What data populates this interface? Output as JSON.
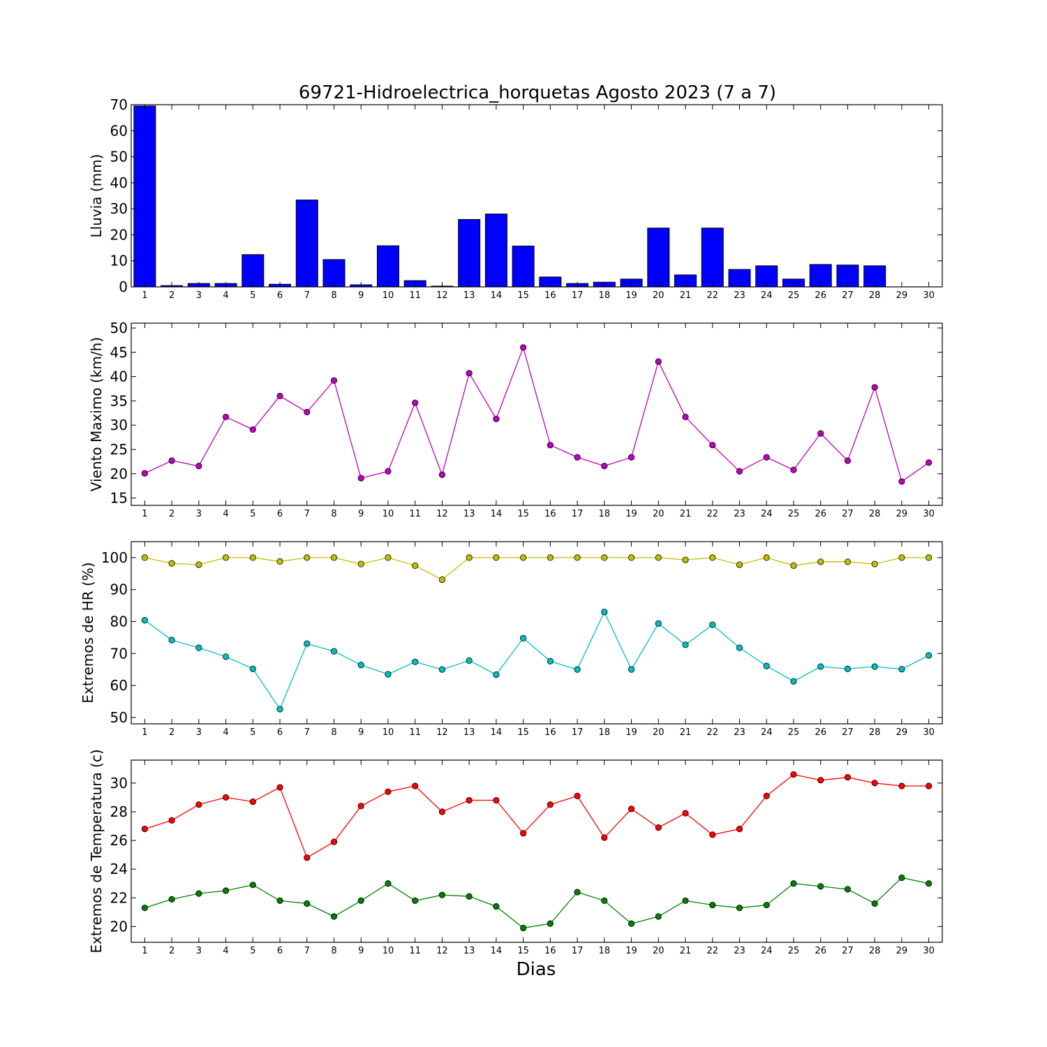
{
  "title": "69721-Hidroelectrica_horquetas Agosto 2023  (7 a 7)",
  "xlabel": "Dias",
  "chart_data": [
    {
      "type": "bar",
      "id": "lluvia",
      "ylabel": "Lluvia (mm)",
      "ylim": [
        0,
        70
      ],
      "yticks": [
        0,
        10,
        20,
        30,
        40,
        50,
        60,
        70
      ],
      "x": [
        1,
        2,
        3,
        4,
        5,
        6,
        7,
        8,
        9,
        10,
        11,
        12,
        13,
        14,
        15,
        16,
        17,
        18,
        19,
        20,
        21,
        22,
        23,
        24,
        25,
        26,
        27,
        28,
        29,
        30
      ],
      "series": [
        {
          "color": "#0000ff",
          "values": [
            69.5,
            0.5,
            1.3,
            1.3,
            12.4,
            1.0,
            33.4,
            10.5,
            0.8,
            15.8,
            2.4,
            0.3,
            25.9,
            28.0,
            15.7,
            3.8,
            1.3,
            1.8,
            3.0,
            22.6,
            4.6,
            22.6,
            6.7,
            8.1,
            3.0,
            8.6,
            8.4,
            8.1,
            0,
            0
          ]
        }
      ]
    },
    {
      "type": "line",
      "id": "viento",
      "ylabel": "Viento Maximo (km/h)",
      "ylim": [
        13.5,
        51
      ],
      "yticks": [
        15,
        20,
        25,
        30,
        35,
        40,
        45,
        50
      ],
      "x": [
        1,
        2,
        3,
        4,
        5,
        6,
        7,
        8,
        9,
        10,
        11,
        12,
        13,
        14,
        15,
        16,
        17,
        18,
        19,
        20,
        21,
        22,
        23,
        24,
        25,
        26,
        27,
        28,
        29,
        30
      ],
      "series": [
        {
          "color": "#bf00bf",
          "values": [
            20.1,
            22.7,
            21.6,
            31.7,
            29.1,
            36.0,
            32.7,
            39.2,
            19.1,
            20.5,
            34.6,
            19.8,
            40.7,
            31.3,
            46.0,
            25.9,
            23.4,
            21.6,
            23.4,
            43.1,
            31.7,
            25.9,
            20.5,
            23.4,
            20.8,
            28.3,
            22.7,
            37.8,
            18.4,
            22.3
          ]
        }
      ]
    },
    {
      "type": "line",
      "id": "hr",
      "ylabel": "Extremos de HR (%)",
      "ylim": [
        48,
        105
      ],
      "yticks": [
        50,
        60,
        70,
        80,
        90,
        100
      ],
      "x": [
        1,
        2,
        3,
        4,
        5,
        6,
        7,
        8,
        9,
        10,
        11,
        12,
        13,
        14,
        15,
        16,
        17,
        18,
        19,
        20,
        21,
        22,
        23,
        24,
        25,
        26,
        27,
        28,
        29,
        30
      ],
      "series": [
        {
          "color": "#bfbf00",
          "values": [
            100,
            98.2,
            97.8,
            100,
            100,
            98.8,
            100,
            100,
            98.0,
            100,
            97.5,
            93.1,
            100,
            100,
            100,
            100,
            100,
            100,
            100,
            100,
            99.3,
            100,
            97.8,
            100,
            97.5,
            98.7,
            98.7,
            98.0,
            100,
            100
          ]
        },
        {
          "color": "#00bfbf",
          "values": [
            80.4,
            74.2,
            71.8,
            69.0,
            65.2,
            52.6,
            73.1,
            70.7,
            66.4,
            63.5,
            67.4,
            65.0,
            67.8,
            63.4,
            74.8,
            67.6,
            65.0,
            83.0,
            65.0,
            79.4,
            72.7,
            79.0,
            71.8,
            66.1,
            61.3,
            65.9,
            65.2,
            65.9,
            65.1,
            69.4
          ]
        }
      ]
    },
    {
      "type": "line",
      "id": "temperatura",
      "ylabel": "Extremos de Temperatura (c)",
      "ylim": [
        18.9,
        31.6
      ],
      "yticks": [
        20,
        22,
        24,
        26,
        28,
        30
      ],
      "x": [
        1,
        2,
        3,
        4,
        5,
        6,
        7,
        8,
        9,
        10,
        11,
        12,
        13,
        14,
        15,
        16,
        17,
        18,
        19,
        20,
        21,
        22,
        23,
        24,
        25,
        26,
        27,
        28,
        29,
        30
      ],
      "series": [
        {
          "color": "#ff0000",
          "values": [
            26.8,
            27.4,
            28.5,
            29.0,
            28.7,
            29.7,
            24.8,
            25.9,
            28.4,
            29.4,
            29.8,
            28.0,
            28.8,
            28.8,
            26.5,
            28.5,
            29.1,
            26.2,
            28.2,
            26.9,
            27.9,
            26.4,
            26.8,
            29.1,
            30.6,
            30.2,
            30.4,
            30.0,
            29.8,
            29.8
          ]
        },
        {
          "color": "#008000",
          "values": [
            21.3,
            21.9,
            22.3,
            22.5,
            22.9,
            21.8,
            21.6,
            20.7,
            21.8,
            23.0,
            21.8,
            22.2,
            22.1,
            21.4,
            19.9,
            20.2,
            22.4,
            21.8,
            20.2,
            20.7,
            21.8,
            21.5,
            21.3,
            21.5,
            23.0,
            22.8,
            22.6,
            21.6,
            23.4,
            23.0
          ]
        }
      ]
    }
  ]
}
